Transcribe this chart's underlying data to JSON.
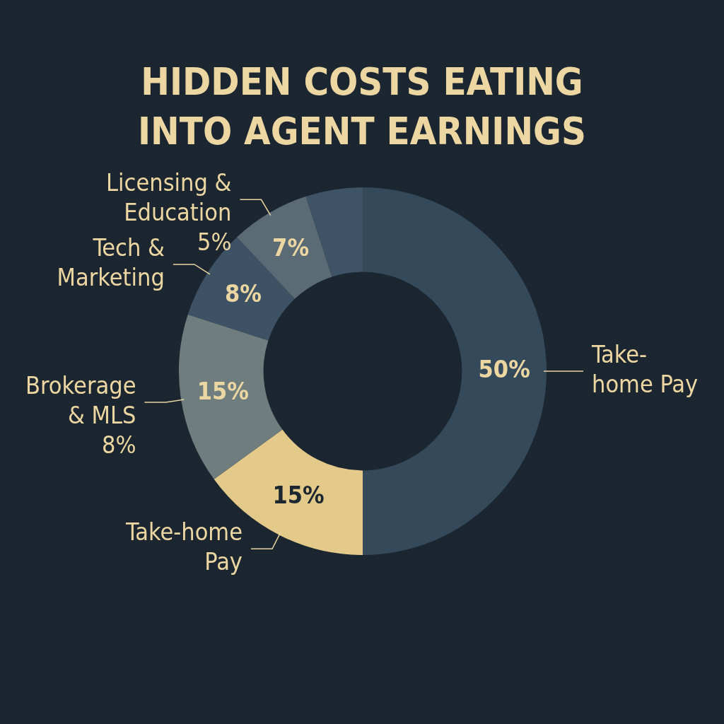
{
  "chart_data": {
    "type": "donut",
    "title": "HIDDEN COSTS EATING INTO AGENT EARNINGS",
    "categories": [
      "Take-\nhome Pay",
      "Take-home\nPay",
      "Brokerage\n& MLS\n8%",
      "Tech &\nMarketing",
      "Licensing &\nEducation\n5%",
      null
    ],
    "values": [
      50,
      15,
      15,
      8,
      7,
      5
    ],
    "value_labels": [
      "50%",
      "15%",
      "15%",
      "8%",
      "7%",
      null
    ],
    "colors": [
      "#34495a",
      "#e3c98a",
      "#6f7d7f",
      "#3d5264",
      "#5a6b75",
      "#3e5366"
    ],
    "legend": false
  }
}
